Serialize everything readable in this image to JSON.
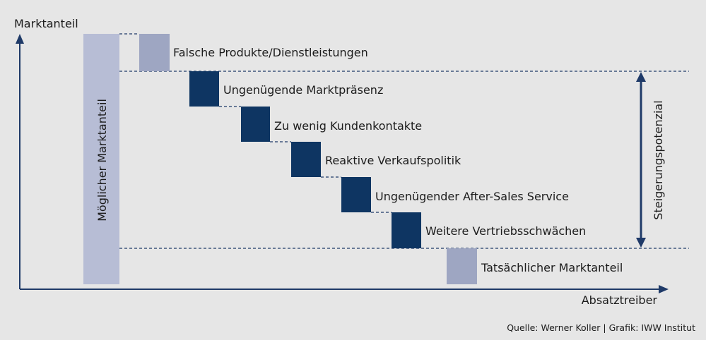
{
  "axes": {
    "y_label": "Marktanteil",
    "x_label": "Absatztreiber"
  },
  "bars": {
    "potential_label": "Möglicher Marktanteil",
    "steps": [
      {
        "label": "Falsche Produkte/Dienstleistungen",
        "kind": "light"
      },
      {
        "label": "Ungenügende Marktpräsenz",
        "kind": "dark"
      },
      {
        "label": "Zu wenig Kundenkontakte",
        "kind": "dark"
      },
      {
        "label": "Reaktive Verkaufspolitik",
        "kind": "dark"
      },
      {
        "label": "Ungenügender After-Sales Service",
        "kind": "dark"
      },
      {
        "label": "Weitere Vertriebsschwächen",
        "kind": "dark"
      },
      {
        "label": "Tatsächlicher Marktanteil",
        "kind": "light"
      }
    ]
  },
  "bracket_label": "Steigerungspotenzial",
  "source_text": "Quelle: Werner Koller | Grafik: IWW Institut",
  "colors": {
    "background": "#e6e6e6",
    "axis": "#1f3a68",
    "dark_block": "#0e3562",
    "light_block": "#9ea6c2",
    "potential_bar": "#b7bdd5"
  }
}
